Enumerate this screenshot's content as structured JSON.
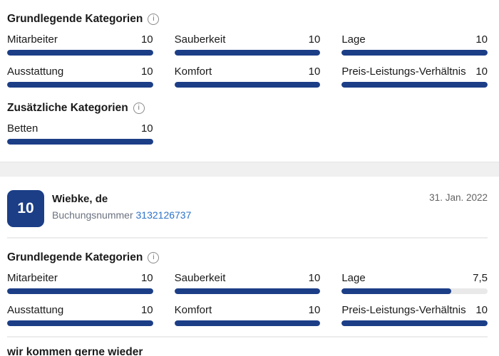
{
  "colors": {
    "navy": "#1c3e87",
    "track": "#e9e9e9",
    "band": "#f0f0f1",
    "link": "#2d73c8",
    "muted": "#6b7280",
    "text": "#1a1a1a"
  },
  "summary_card": {
    "basic": {
      "title": "Grundlegende Kategorien",
      "info_icon": "i",
      "items": [
        {
          "label": "Mitarbeiter",
          "value": "10",
          "pct": 100
        },
        {
          "label": "Sauberkeit",
          "value": "10",
          "pct": 100
        },
        {
          "label": "Lage",
          "value": "10",
          "pct": 100
        },
        {
          "label": "Ausstattung",
          "value": "10",
          "pct": 100
        },
        {
          "label": "Komfort",
          "value": "10",
          "pct": 100
        },
        {
          "label": "Preis-Leistungs-Verhältnis",
          "value": "10",
          "pct": 100
        }
      ]
    },
    "additional": {
      "title": "Zusätzliche Kategorien",
      "info_icon": "i",
      "items": [
        {
          "label": "Betten",
          "value": "10",
          "pct": 100
        }
      ]
    }
  },
  "review_card": {
    "score": "10",
    "reviewer": "Wiebke, de",
    "booking_label": "Buchungsnummer",
    "booking_number": "3132126737",
    "date": "31. Jan. 2022",
    "basic": {
      "title": "Grundlegende Kategorien",
      "info_icon": "i",
      "items": [
        {
          "label": "Mitarbeiter",
          "value": "10",
          "pct": 100
        },
        {
          "label": "Sauberkeit",
          "value": "10",
          "pct": 100
        },
        {
          "label": "Lage",
          "value": "7,5",
          "pct": 75
        },
        {
          "label": "Ausstattung",
          "value": "10",
          "pct": 100
        },
        {
          "label": "Komfort",
          "value": "10",
          "pct": 100
        },
        {
          "label": "Preis-Leistungs-Verhältnis",
          "value": "10",
          "pct": 100
        }
      ]
    },
    "comment_title": "wir kommen gerne wieder"
  }
}
